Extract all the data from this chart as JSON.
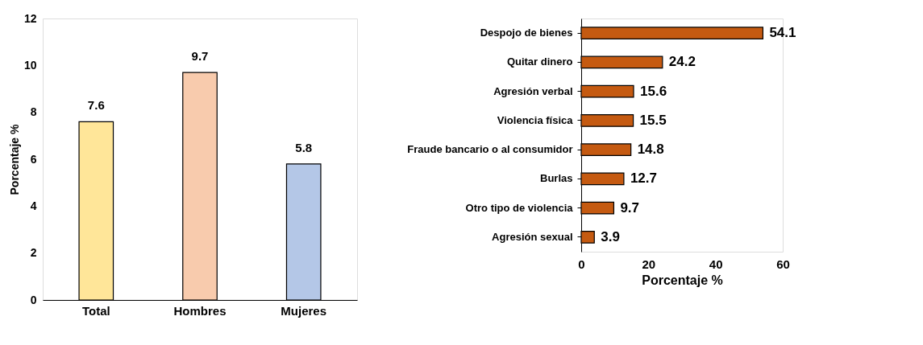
{
  "chart_data": [
    {
      "type": "bar",
      "ylabel": "Porcentaje %",
      "categories": [
        "Total",
        "Hombres",
        "Mujeres"
      ],
      "values": [
        7.6,
        9.7,
        5.8
      ],
      "colors": [
        "#ffe699",
        "#f8cbad",
        "#b4c7e7"
      ],
      "ylim": [
        0,
        12
      ],
      "yticks": [
        0,
        2,
        4,
        6,
        8,
        10,
        12
      ],
      "data_labels": true,
      "grid": false,
      "legend": false
    },
    {
      "type": "bar",
      "orientation": "horizontal",
      "xlabel": "Porcentaje %",
      "categories": [
        "Despojo de bienes",
        "Quitar dinero",
        "Agresión verbal",
        "Violencia física",
        "Fraude bancario o al consumidor",
        "Burlas",
        "Otro tipo de violencia",
        "Agresión sexual"
      ],
      "values": [
        54.1,
        24.2,
        15.6,
        15.5,
        14.8,
        12.7,
        9.7,
        3.9
      ],
      "color": "#c55a11",
      "xlim": [
        0,
        60
      ],
      "xticks": [
        0,
        20,
        40,
        60
      ],
      "data_labels": true,
      "grid": false,
      "legend": false
    }
  ]
}
